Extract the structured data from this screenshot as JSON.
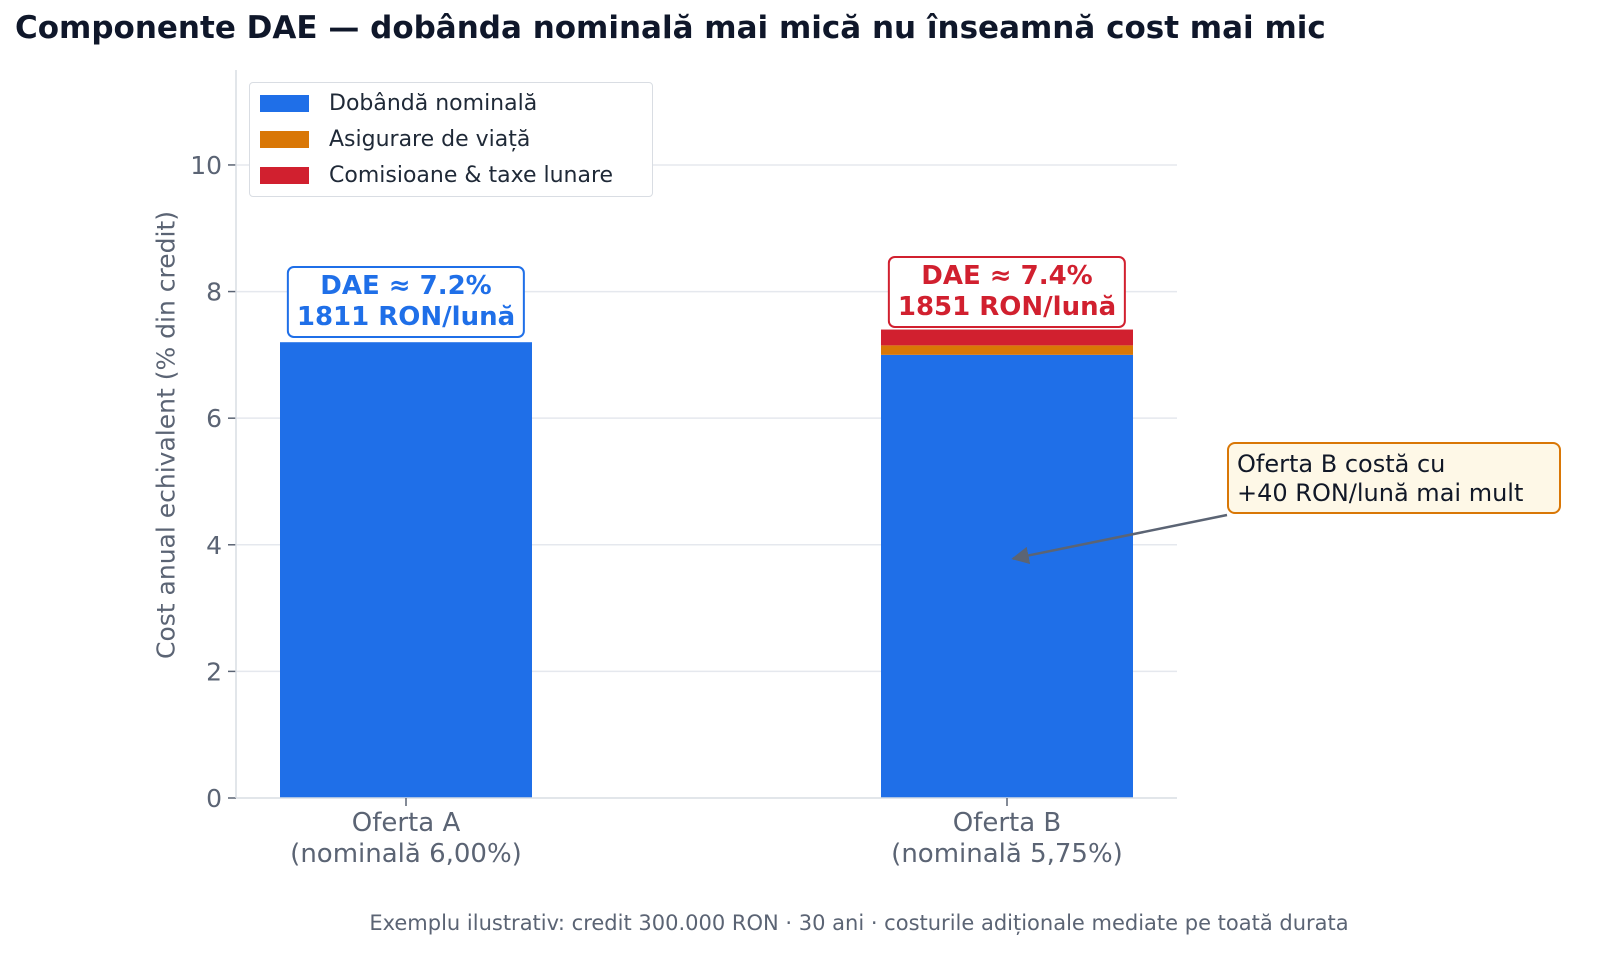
{
  "chart_data": {
    "type": "bar",
    "stacked": true,
    "title": "Componente DAE — dobânda nominală mai mică nu înseamnă cost mai mic",
    "xlabel": "",
    "ylabel": "Cost anual echivalent (% din credit)",
    "ylim": [
      0,
      11.5
    ],
    "yticks": [
      "0",
      "2",
      "4",
      "6",
      "8",
      "10"
    ],
    "ytick_values": [
      0,
      2,
      4,
      6,
      8,
      10
    ],
    "grid": true,
    "legend_position": "top-left",
    "categories": [
      {
        "name": "Oferta A",
        "detail": "(nominală 6,00%)"
      },
      {
        "name": "Oferta B",
        "detail": "(nominală 5,75%)"
      }
    ],
    "series": [
      {
        "name": "Dobândă nominală",
        "color": "#1f6fe8",
        "values": [
          7.2,
          7.0
        ]
      },
      {
        "name": "Asigurare de viață",
        "color": "#d97706",
        "values": [
          0.0,
          0.15
        ]
      },
      {
        "name": "Comisioane & taxe lunare",
        "color": "#d1202f",
        "values": [
          0.0,
          0.25
        ]
      }
    ],
    "annotations": [
      {
        "category": "Oferta A",
        "line1": "DAE ≈ 7.2%",
        "line2": "1811 RON/lună",
        "color": "#1f6fe8"
      },
      {
        "category": "Oferta B",
        "line1": "DAE ≈ 7.4%",
        "line2": "1851 RON/lună",
        "color": "#d1202f"
      }
    ],
    "callout": {
      "line1": "Oferta B costă cu",
      "line2": "+40 RON/lună mai mult",
      "target_category": "Oferta B",
      "target_value": 3.75
    },
    "footnote": "Exemplu ilustrativ: credit 300.000 RON · 30 ani · costurile adiționale mediate pe toată durata"
  }
}
